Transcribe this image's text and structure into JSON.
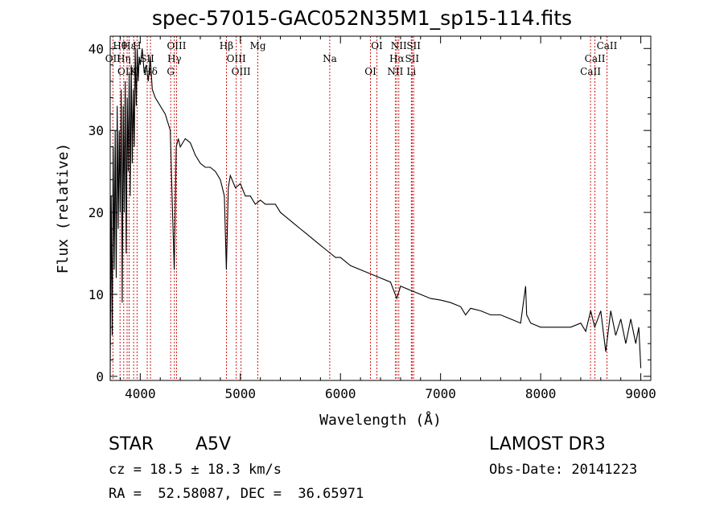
{
  "chart_data": {
    "type": "line",
    "title": "spec-57015-GAC052N35M1_sp15-114.fits",
    "xlabel": "Wavelength (Å)",
    "ylabel": "Flux (relative)",
    "xlim": [
      3700,
      9100
    ],
    "ylim": [
      -0.5,
      41.5
    ],
    "xticks": [
      4000,
      5000,
      6000,
      7000,
      8000,
      9000
    ],
    "yticks": [
      0,
      10,
      20,
      30,
      40
    ],
    "series": [
      {
        "name": "spectrum",
        "x": [
          3700,
          3710,
          3720,
          3730,
          3740,
          3750,
          3760,
          3770,
          3780,
          3790,
          3800,
          3810,
          3820,
          3830,
          3840,
          3850,
          3860,
          3870,
          3880,
          3890,
          3900,
          3910,
          3920,
          3930,
          3940,
          3950,
          3960,
          3970,
          3980,
          3990,
          4000,
          4020,
          4040,
          4060,
          4080,
          4100,
          4120,
          4150,
          4200,
          4250,
          4300,
          4320,
          4340,
          4360,
          4380,
          4400,
          4450,
          4500,
          4550,
          4600,
          4650,
          4700,
          4750,
          4800,
          4840,
          4860,
          4880,
          4900,
          4950,
          5000,
          5050,
          5100,
          5150,
          5200,
          5250,
          5300,
          5350,
          5400,
          5450,
          5500,
          5550,
          5600,
          5650,
          5700,
          5750,
          5800,
          5850,
          5900,
          5950,
          6000,
          6100,
          6200,
          6300,
          6400,
          6500,
          6563,
          6600,
          6700,
          6800,
          6900,
          7000,
          7100,
          7200,
          7250,
          7300,
          7400,
          7500,
          7600,
          7700,
          7800,
          7850,
          7860,
          7900,
          8000,
          8100,
          8200,
          8300,
          8400,
          8450,
          8500,
          8540,
          8600,
          8650,
          8700,
          8750,
          8800,
          8850,
          8900,
          8950,
          8980,
          9000
        ],
        "y": [
          0,
          22,
          5,
          28,
          13,
          30,
          12,
          33,
          18,
          30,
          20,
          35,
          9,
          33,
          20,
          36,
          15,
          34,
          25,
          37,
          22,
          38,
          26,
          35,
          28,
          40,
          33,
          40,
          36,
          39,
          38,
          40,
          37,
          38,
          36,
          39,
          35,
          34,
          33,
          32,
          30,
          21,
          13,
          28,
          29,
          28,
          29,
          28.5,
          27,
          26,
          25.5,
          25.5,
          25,
          24,
          22,
          13,
          23,
          24.5,
          23,
          23.5,
          22,
          22,
          21,
          21.5,
          21,
          21,
          21,
          20,
          19.5,
          19,
          18.5,
          18,
          17.5,
          17,
          16.5,
          16,
          15.5,
          15,
          14.5,
          14.5,
          13.5,
          13,
          12.5,
          12,
          11.5,
          9.5,
          11,
          10.5,
          10,
          9.5,
          9.3,
          9,
          8.5,
          7.5,
          8.3,
          8,
          7.5,
          7.5,
          7,
          6.5,
          11,
          7.5,
          6.5,
          6,
          6,
          6,
          6,
          6.5,
          5.5,
          8,
          6,
          8,
          3,
          8,
          5,
          7,
          4,
          7,
          4,
          6,
          1
        ]
      }
    ],
    "lines": [
      {
        "label": "Hθ",
        "wl": 3798
      },
      {
        "label": "OII",
        "wl": 3727
      },
      {
        "label": "OIII",
        "wl": 3869
      },
      {
        "label": "Hε",
        "wl": 3889
      },
      {
        "label": "Hη",
        "wl": 3835
      },
      {
        "label": "K",
        "wl": 3934
      },
      {
        "label": "H",
        "wl": 3968
      },
      {
        "label": "SII",
        "wl": 4070
      },
      {
        "label": "Hδ",
        "wl": 4102
      },
      {
        "label": "OIII",
        "wl": 4363
      },
      {
        "label": "Hγ",
        "wl": 4341
      },
      {
        "label": "G",
        "wl": 4304
      },
      {
        "label": "Hβ",
        "wl": 4861
      },
      {
        "label": "OIII",
        "wl": 4959
      },
      {
        "label": "OIII",
        "wl": 5007
      },
      {
        "label": "Mg",
        "wl": 5175
      },
      {
        "label": "Na",
        "wl": 5893
      },
      {
        "label": "OI",
        "wl": 6300
      },
      {
        "label": "OI",
        "wl": 6364
      },
      {
        "label": "Hα",
        "wl": 6563
      },
      {
        "label": "NII",
        "wl": 6548
      },
      {
        "label": "NII",
        "wl": 6583
      },
      {
        "label": "SII",
        "wl": 6716
      },
      {
        "label": "Li",
        "wl": 6708
      },
      {
        "label": "SII",
        "wl": 6731
      },
      {
        "label": "CaII",
        "wl": 8542
      },
      {
        "label": "CaII",
        "wl": 8498
      },
      {
        "label": "CaII",
        "wl": 8662
      }
    ]
  },
  "info": {
    "class": "STAR",
    "subclass": "A5V",
    "survey": "LAMOST DR3",
    "cz": "cz = 18.5 ± 18.3 km/s",
    "obs_date": "Obs-Date: 20141223",
    "coords": "RA =  52.58087, DEC =  36.65971"
  }
}
